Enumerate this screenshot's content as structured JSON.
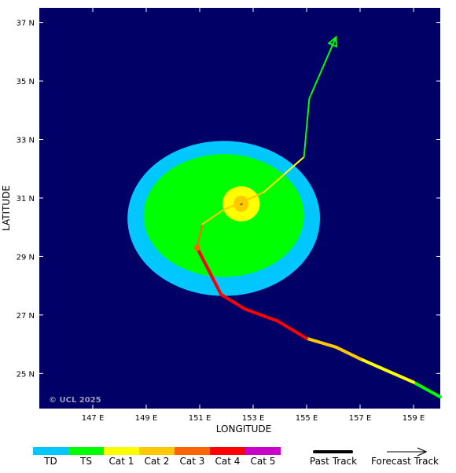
{
  "colors": {
    "ocean": "#000066",
    "TD": "#00c8ff",
    "TS": "#00ff00",
    "Cat 1": "#ffff00",
    "Cat 2": "#ffc800",
    "Cat 3": "#ff6400",
    "Cat 4": "#ff0000",
    "Cat 5": "#c800c8",
    "forecast_arrow": "#00ff00",
    "credit": "#9a9ab8"
  },
  "axes": {
    "xlabel": "LONGITUDE",
    "ylabel": "LATITUDE",
    "xlim": [
      145,
      160
    ],
    "ylim": [
      23.8,
      37.5
    ],
    "x_ticks": [
      {
        "value": 147,
        "label": "147 E"
      },
      {
        "value": 149,
        "label": "149 E"
      },
      {
        "value": 151,
        "label": "151 E"
      },
      {
        "value": 153,
        "label": "153 E"
      },
      {
        "value": 155,
        "label": "155 E"
      },
      {
        "value": 157,
        "label": "157 E"
      },
      {
        "value": 159,
        "label": "159 E"
      }
    ],
    "y_ticks": [
      {
        "value": 25,
        "label": "25 N"
      },
      {
        "value": 27,
        "label": "27 N"
      },
      {
        "value": 29,
        "label": "29 N"
      },
      {
        "value": 31,
        "label": "31 N"
      },
      {
        "value": 33,
        "label": "33 N"
      },
      {
        "value": 35,
        "label": "35 N"
      },
      {
        "value": 37,
        "label": "37 N"
      }
    ]
  },
  "credit": "© UCL 2025",
  "wind_field": {
    "ts_radius": {
      "center": [
        151.9,
        30.4
      ],
      "rx_deg": 3.0,
      "ry_deg": 2.1
    },
    "td_radius": {
      "center": [
        151.9,
        30.3
      ],
      "rx_deg": 3.6,
      "ry_deg": 2.65
    },
    "cat1_radius": {
      "center": [
        152.55,
        30.8
      ],
      "rx_deg": 0.7,
      "ry_deg": 0.6
    },
    "cat2_radius": {
      "center": [
        152.55,
        30.8
      ],
      "rx_deg": 0.28,
      "ry_deg": 0.28
    },
    "center": [
      152.55,
      30.8
    ]
  },
  "past_track": [
    {
      "lon": 160.0,
      "lat": 24.2,
      "cat": "TS"
    },
    {
      "lon": 159.0,
      "lat": 24.7,
      "cat": "TS"
    },
    {
      "lon": 158.0,
      "lat": 25.1,
      "cat": "Cat 1"
    },
    {
      "lon": 157.0,
      "lat": 25.5,
      "cat": "Cat 1"
    },
    {
      "lon": 156.1,
      "lat": 25.9,
      "cat": "Cat 2"
    },
    {
      "lon": 155.0,
      "lat": 26.2,
      "cat": "Cat 2"
    },
    {
      "lon": 153.9,
      "lat": 26.8,
      "cat": "Cat 4"
    },
    {
      "lon": 152.7,
      "lat": 27.2,
      "cat": "Cat 4"
    },
    {
      "lon": 151.8,
      "lat": 27.7,
      "cat": "Cat 4"
    },
    {
      "lon": 150.9,
      "lat": 29.3,
      "cat": "Cat 4"
    }
  ],
  "forecast_track": [
    {
      "lon": 150.9,
      "lat": 29.3,
      "cat": "Cat 3"
    },
    {
      "lon": 151.1,
      "lat": 30.1,
      "cat": "Cat 3"
    },
    {
      "lon": 151.9,
      "lat": 30.6,
      "cat": "Cat 2"
    },
    {
      "lon": 152.7,
      "lat": 30.9,
      "cat": "Cat 2"
    },
    {
      "lon": 153.4,
      "lat": 31.2,
      "cat": "Cat 2"
    },
    {
      "lon": 154.9,
      "lat": 32.4,
      "cat": "Cat 1"
    },
    {
      "lon": 155.1,
      "lat": 34.4,
      "cat": "TS"
    },
    {
      "lon": 156.1,
      "lat": 36.5,
      "cat": "TS"
    }
  ],
  "legend": {
    "categories": [
      "TD",
      "TS",
      "Cat 1",
      "Cat 2",
      "Cat 3",
      "Cat 4",
      "Cat 5"
    ],
    "past_track_label": "Past Track",
    "forecast_track_label": "Forecast Track"
  }
}
